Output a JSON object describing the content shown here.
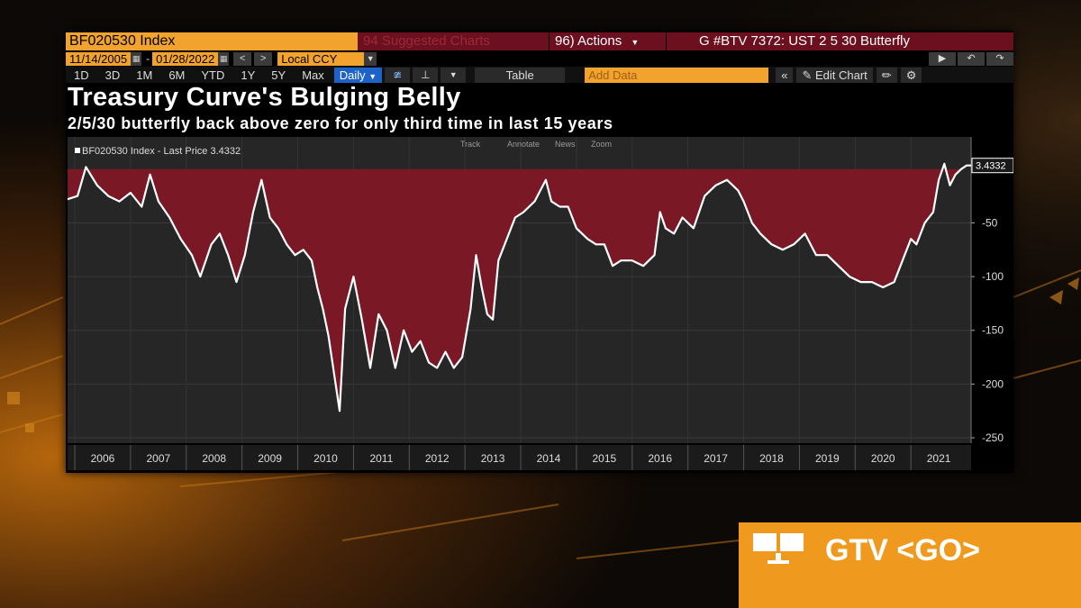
{
  "toolbar": {
    "security": "BF020530 Index",
    "faded_tab": "94 Suggested Charts",
    "actions": "96) Actions",
    "graph_title": "G #BTV 7372: UST 2 5 30 Butterfly",
    "start_date": "11/14/2005",
    "end_date": "01/28/2022",
    "currency": "Local CCY",
    "ranges": [
      "1D",
      "3D",
      "1M",
      "6M",
      "YTD",
      "1Y",
      "5Y",
      "Max"
    ],
    "frequency": "Daily",
    "table_label": "Table",
    "add_data_placeholder": "Add Data",
    "edit_chart": "Edit Chart"
  },
  "chart_tools": [
    "Track",
    "Annotate",
    "News",
    "Zoom"
  ],
  "colors": {
    "accent": "#f1a32d",
    "fill": "#7b1826",
    "line": "#ffffff",
    "bar": "#6c0f1f",
    "gtv": "#ef9a1e"
  },
  "gtv": {
    "label": "GTV <GO>"
  },
  "chart_data": {
    "type": "area",
    "title": "Treasury Curve's Bulging Belly",
    "subtitle": "2/5/30 butterfly back above zero for only third time in last 15 years",
    "legend": "BF020530 Index - Last Price 3.4332",
    "last_value": 3.4332,
    "last_label": "3.4332",
    "baseline": 0,
    "ylim": [
      -255,
      30
    ],
    "yticks": [
      -250,
      -200,
      -150,
      -100,
      -50
    ],
    "ytick_labels": [
      "-250",
      "-200",
      "-150",
      "-100",
      "-50"
    ],
    "xlim": [
      2005.87,
      2022.08
    ],
    "xlabels": [
      "2006",
      "2007",
      "2008",
      "2009",
      "2010",
      "2011",
      "2012",
      "2013",
      "2014",
      "2015",
      "2016",
      "2017",
      "2018",
      "2019",
      "2020",
      "2021"
    ],
    "grid": true,
    "x": [
      2005.87,
      2006.05,
      2006.2,
      2006.4,
      2006.6,
      2006.8,
      2007.0,
      2007.2,
      2007.35,
      2007.5,
      2007.7,
      2007.9,
      2008.1,
      2008.25,
      2008.35,
      2008.45,
      2008.6,
      2008.75,
      2008.9,
      2009.05,
      2009.2,
      2009.35,
      2009.5,
      2009.65,
      2009.8,
      2009.95,
      2010.1,
      2010.25,
      2010.35,
      2010.45,
      2010.55,
      2010.65,
      2010.75,
      2010.85,
      2011.0,
      2011.15,
      2011.3,
      2011.45,
      2011.6,
      2011.75,
      2011.9,
      2012.05,
      2012.2,
      2012.35,
      2012.5,
      2012.65,
      2012.8,
      2012.95,
      2013.1,
      2013.2,
      2013.3,
      2013.4,
      2013.5,
      2013.6,
      2013.75,
      2013.9,
      2014.05,
      2014.25,
      2014.45,
      2014.55,
      2014.7,
      2014.85,
      2015.0,
      2015.2,
      2015.35,
      2015.5,
      2015.65,
      2015.8,
      2016.0,
      2016.2,
      2016.4,
      2016.5,
      2016.6,
      2016.75,
      2016.9,
      2017.1,
      2017.3,
      2017.5,
      2017.7,
      2017.9,
      2018.0,
      2018.15,
      2018.3,
      2018.5,
      2018.7,
      2018.9,
      2019.1,
      2019.3,
      2019.5,
      2019.7,
      2019.9,
      2020.1,
      2020.3,
      2020.5,
      2020.7,
      2020.85,
      2021.0,
      2021.1,
      2021.25,
      2021.4,
      2021.5,
      2021.6,
      2021.7,
      2021.8,
      2021.9,
      2022.0,
      2022.08
    ],
    "values": [
      -28,
      -25,
      2,
      -15,
      -25,
      -30,
      -22,
      -35,
      -5,
      -30,
      -45,
      -65,
      -80,
      -100,
      -85,
      -70,
      -60,
      -80,
      -105,
      -80,
      -40,
      -10,
      -45,
      -55,
      -70,
      -80,
      -75,
      -85,
      -110,
      -130,
      -155,
      -190,
      -225,
      -130,
      -100,
      -140,
      -185,
      -135,
      -150,
      -185,
      -150,
      -170,
      -160,
      -180,
      -185,
      -170,
      -185,
      -175,
      -130,
      -80,
      -110,
      -135,
      -140,
      -85,
      -65,
      -45,
      -40,
      -30,
      -10,
      -30,
      -35,
      -35,
      -55,
      -65,
      -70,
      -70,
      -90,
      -85,
      -85,
      -90,
      -80,
      -40,
      -55,
      -60,
      -45,
      -55,
      -25,
      -15,
      -10,
      -20,
      -30,
      -50,
      -60,
      -70,
      -75,
      -70,
      -60,
      -80,
      -80,
      -90,
      -100,
      -105,
      -105,
      -110,
      -105,
      -85,
      -65,
      -70,
      -50,
      -40,
      -10,
      5,
      -15,
      -5,
      0,
      3.4332,
      3.4332
    ]
  }
}
